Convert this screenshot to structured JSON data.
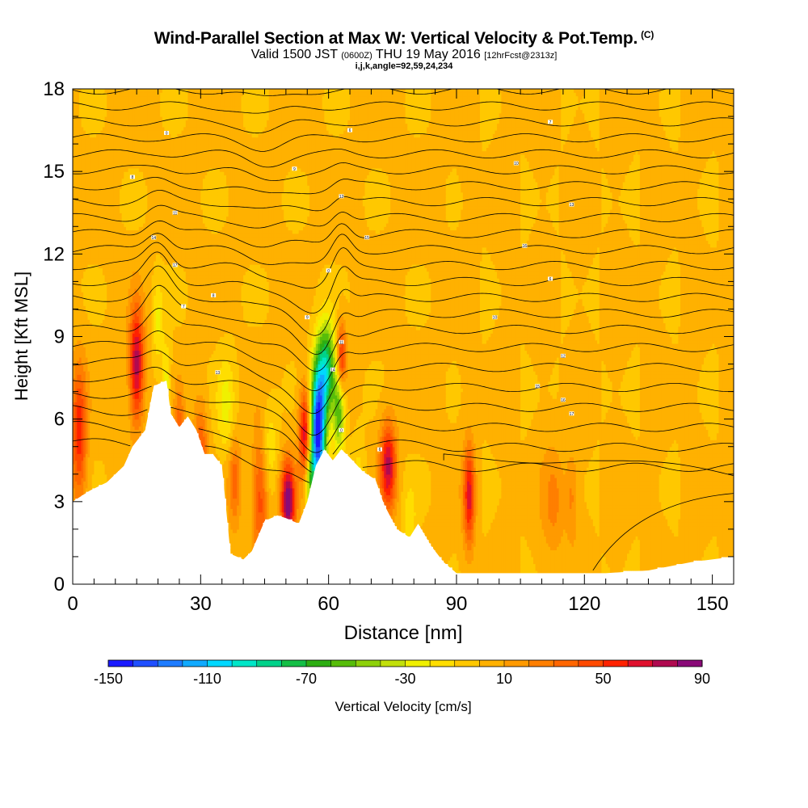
{
  "header": {
    "title_main": "Wind-Parallel Section at Max W: Vertical Velocity & Pot.Temp.",
    "title_mark": "(C)",
    "valid_a": "Valid 1500 JST",
    "valid_b": "(0600Z)",
    "valid_c": "THU 19 May 2016",
    "valid_d": "[12hrFcst@2313z]",
    "indices": "i,j,k,angle=92,59,24,234"
  },
  "chart_data": {
    "type": "heatmap",
    "xlabel": "Distance [nm]",
    "ylabel": "Height [Kft MSL]",
    "xlim": [
      0,
      155
    ],
    "ylim": [
      0,
      18
    ],
    "xticks": [
      0,
      30,
      60,
      90,
      120,
      150
    ],
    "yticks": [
      0,
      3,
      6,
      9,
      12,
      15,
      18
    ],
    "colorbar": {
      "label": "Vertical Velocity [cm/s]",
      "range": [
        -150,
        90
      ],
      "step": 10,
      "tick_labels": [
        "-150",
        "-110",
        "-70",
        "-30",
        "10",
        "50",
        "90"
      ],
      "colors": [
        "#1a1aff",
        "#1f4fff",
        "#1e7cff",
        "#10aaff",
        "#00d8ff",
        "#00e6c8",
        "#00d28a",
        "#14bf46",
        "#2dae12",
        "#57bd0a",
        "#8ed10a",
        "#c2e00a",
        "#f0f000",
        "#ffde00",
        "#ffc800",
        "#ffb100",
        "#ff9a00",
        "#ff7f00",
        "#ff6600",
        "#ff4a00",
        "#ff2200",
        "#e0102e",
        "#b00a50",
        "#8a0a78"
      ]
    },
    "terrain_kft": [
      [
        0,
        3
      ],
      [
        4,
        3.4
      ],
      [
        8,
        3.7
      ],
      [
        12,
        4.3
      ],
      [
        14,
        5
      ],
      [
        17,
        5.6
      ],
      [
        19,
        7.2
      ],
      [
        22,
        7.4
      ],
      [
        23,
        6.2
      ],
      [
        25,
        5.7
      ],
      [
        27,
        6.1
      ],
      [
        29,
        5.6
      ],
      [
        31,
        4.7
      ],
      [
        33,
        4.7
      ],
      [
        35,
        4.3
      ],
      [
        37,
        1.1
      ],
      [
        40,
        0.9
      ],
      [
        42,
        1.2
      ],
      [
        45,
        2.3
      ],
      [
        48,
        2.5
      ],
      [
        50,
        2.4
      ],
      [
        53,
        2.2
      ],
      [
        55,
        3
      ],
      [
        57,
        4.3
      ],
      [
        59,
        4.9
      ],
      [
        61,
        4.5
      ],
      [
        63,
        4.9
      ],
      [
        65,
        4.6
      ],
      [
        68,
        4.1
      ],
      [
        71,
        3.8
      ],
      [
        73,
        2.9
      ],
      [
        76,
        2
      ],
      [
        79,
        1.7
      ],
      [
        81,
        2.2
      ],
      [
        84,
        1.4
      ],
      [
        87,
        0.8
      ],
      [
        90,
        0.4
      ],
      [
        110,
        0.4
      ],
      [
        125,
        0.4
      ],
      [
        135,
        0.5
      ],
      [
        145,
        0.8
      ],
      [
        155,
        1
      ]
    ],
    "max_w_cm_s": 90,
    "min_w_cm_s": -150,
    "theta_labels": [
      "0",
      "6",
      "7",
      "8",
      "9",
      "10",
      "11",
      "12",
      "13",
      "14",
      "15",
      "16",
      "17"
    ]
  }
}
